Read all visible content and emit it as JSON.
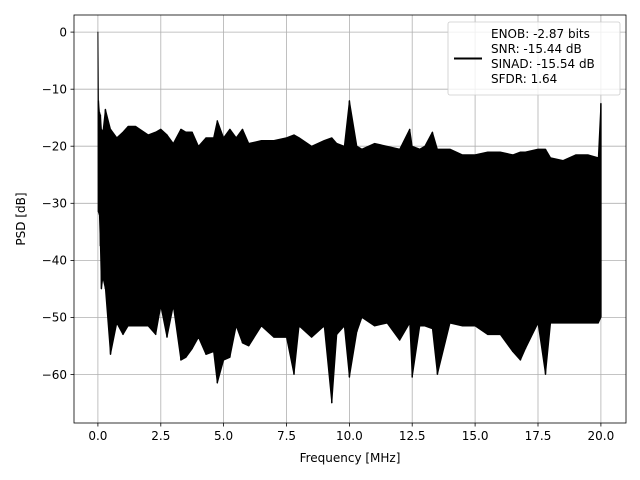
{
  "chart_data": {
    "type": "line",
    "xlabel": "Frequency [MHz]",
    "ylabel": "PSD [dB]",
    "xlim": [
      -0.95,
      21.0
    ],
    "ylim": [
      -68.5,
      3.0
    ],
    "x_ticks": [
      0.0,
      2.5,
      5.0,
      7.5,
      10.0,
      12.5,
      15.0,
      17.5,
      20.0
    ],
    "x_tick_labels": [
      "0.0",
      "2.5",
      "5.0",
      "7.5",
      "10.0",
      "12.5",
      "15.0",
      "17.5",
      "20.0"
    ],
    "y_ticks": [
      0,
      -10,
      -20,
      -30,
      -40,
      -50,
      -60
    ],
    "y_tick_labels": [
      "0",
      "−10",
      "−20",
      "−30",
      "−40",
      "−50",
      "−60"
    ],
    "grid": true,
    "legend_position": "top-right",
    "series": [
      {
        "name": "ENOB: -2.87 bits\nSNR: -15.44 dB\nSINAD: -15.54 dB\nSFDR: 1.64",
        "color": "#000000",
        "x": [
          0.0,
          0.02,
          0.06,
          0.1,
          0.14,
          0.2,
          0.3,
          0.5,
          0.75,
          1.0,
          1.2,
          1.5,
          2.0,
          2.3,
          2.5,
          2.75,
          3.0,
          3.3,
          3.5,
          3.75,
          4.0,
          4.3,
          4.6,
          4.75,
          5.0,
          5.25,
          5.5,
          5.75,
          6.0,
          6.5,
          7.0,
          7.5,
          7.8,
          8.0,
          8.5,
          9.0,
          9.3,
          9.5,
          9.8,
          10.0,
          10.3,
          10.5,
          11.0,
          11.5,
          12.0,
          12.4,
          12.5,
          12.8,
          13.0,
          13.3,
          13.5,
          14.0,
          14.5,
          15.0,
          15.5,
          16.0,
          16.5,
          16.8,
          17.0,
          17.5,
          17.8,
          18.0,
          18.5,
          19.0,
          19.5,
          19.9,
          20.0
        ],
        "upper": [
          0.0,
          -12.0,
          -14.0,
          -14.5,
          -17.0,
          -17.5,
          -13.5,
          -17.0,
          -18.5,
          -17.5,
          -16.5,
          -16.5,
          -18.0,
          -17.5,
          -17.0,
          -18.0,
          -19.5,
          -17.0,
          -17.5,
          -17.5,
          -20.0,
          -18.5,
          -18.5,
          -15.5,
          -18.5,
          -17.0,
          -18.5,
          -17.0,
          -19.5,
          -19.0,
          -19.0,
          -18.5,
          -18.0,
          -18.5,
          -20.0,
          -19.0,
          -18.5,
          -19.5,
          -20.0,
          -12.0,
          -20.0,
          -20.5,
          -19.5,
          -20.0,
          -20.5,
          -17.0,
          -20.0,
          -20.5,
          -20.0,
          -17.5,
          -20.5,
          -20.5,
          -21.5,
          -21.5,
          -21.0,
          -21.0,
          -21.5,
          -21.0,
          -21.0,
          -20.5,
          -20.5,
          -22.0,
          -22.5,
          -21.5,
          -21.5,
          -22.0,
          -12.5
        ],
        "lower": [
          0.0,
          -31.5,
          -32.0,
          -37.5,
          -45.0,
          -43.0,
          -45.0,
          -56.5,
          -51.0,
          -53.0,
          -51.5,
          -51.5,
          -51.5,
          -53.0,
          -48.0,
          -53.5,
          -48.0,
          -57.5,
          -57.0,
          -55.5,
          -53.5,
          -56.5,
          -56.0,
          -61.5,
          -57.5,
          -57.0,
          -51.5,
          -54.5,
          -55.0,
          -51.5,
          -53.5,
          -53.5,
          -60.0,
          -51.5,
          -53.5,
          -51.5,
          -65.0,
          -53.0,
          -51.5,
          -60.5,
          -52.5,
          -50.0,
          -51.5,
          -51.0,
          -54.0,
          -51.0,
          -60.5,
          -51.5,
          -51.5,
          -52.0,
          -60.0,
          -51.0,
          -51.5,
          -51.5,
          -53.0,
          -53.0,
          -56.0,
          -57.5,
          -55.5,
          -51.0,
          -60.0,
          -51.0,
          -51.0,
          -51.0,
          -51.0,
          -51.0,
          -50.0
        ]
      }
    ]
  }
}
